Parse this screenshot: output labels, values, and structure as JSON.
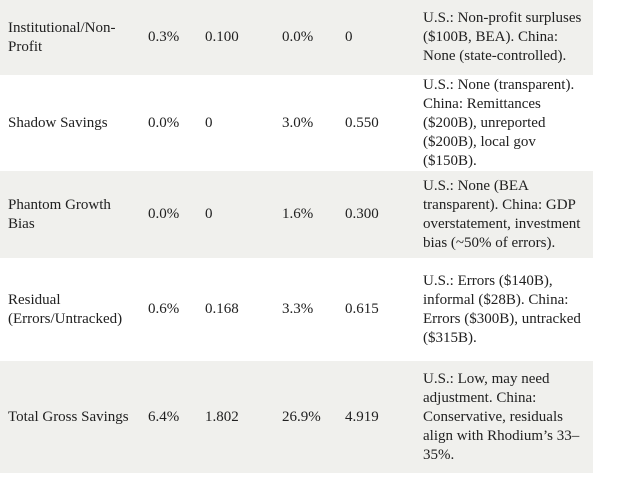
{
  "table": {
    "rows": [
      {
        "label": "Institutional/Non-Profit",
        "us_pct": "0.3%",
        "us_value": "0.100",
        "china_pct": "0.0%",
        "china_value": "0",
        "notes": "U.S.: Non-profit surpluses ($100B, BEA). China: None (state-controlled)."
      },
      {
        "label": "Shadow Savings",
        "us_pct": "0.0%",
        "us_value": "0",
        "china_pct": "3.0%",
        "china_value": "0.550",
        "notes": "U.S.: None (transparent). China: Remittances ($200B), unreported ($200B), local gov ($150B)."
      },
      {
        "label": "Phantom Growth Bias",
        "us_pct": "0.0%",
        "us_value": "0",
        "china_pct": "1.6%",
        "china_value": "0.300",
        "notes": "U.S.: None (BEA transparent). China: GDP overstatement, investment bias (~50% of errors)."
      },
      {
        "label": "Residual (Errors/Untracked)",
        "us_pct": "0.6%",
        "us_value": "0.168",
        "china_pct": "3.3%",
        "china_value": "0.615",
        "notes": "U.S.: Errors ($140B), informal ($28B). China: Errors ($300B), untracked ($315B)."
      },
      {
        "label": "Total Gross Savings",
        "us_pct": "6.4%",
        "us_value": "1.802",
        "china_pct": "26.9%",
        "china_value": "4.919",
        "notes": "U.S.: Low, may need adjustment. China: Conservative, residuals align with Rhodium’s 33–35%."
      }
    ]
  },
  "colors": {
    "row_alt_bg": "#f0f0ed",
    "page_bg": "#ffffff",
    "text": "#212121"
  }
}
